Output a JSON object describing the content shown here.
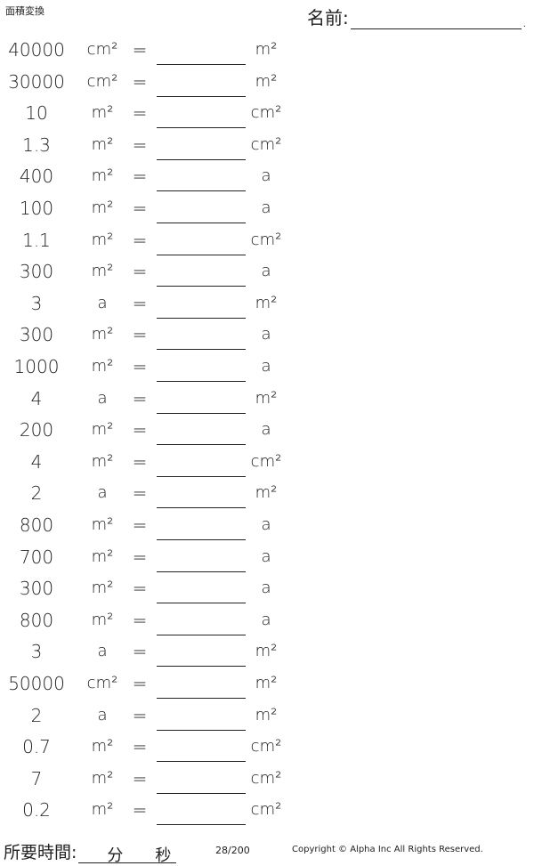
{
  "header": {
    "title": "面積変換",
    "name_label": "名前:",
    "name_dot": "."
  },
  "rows": [
    {
      "value": "40000",
      "from": "cm²",
      "eq": "=",
      "to": "m²"
    },
    {
      "value": "30000",
      "from": "cm²",
      "eq": "=",
      "to": "m²"
    },
    {
      "value": "10",
      "from": "m²",
      "eq": "=",
      "to": "cm²"
    },
    {
      "value": "1.3",
      "from": "m²",
      "eq": "=",
      "to": "cm²"
    },
    {
      "value": "400",
      "from": "m²",
      "eq": "=",
      "to": "a"
    },
    {
      "value": "100",
      "from": "m²",
      "eq": "=",
      "to": "a"
    },
    {
      "value": "1.1",
      "from": "m²",
      "eq": "=",
      "to": "cm²"
    },
    {
      "value": "300",
      "from": "m²",
      "eq": "=",
      "to": "a"
    },
    {
      "value": "3",
      "from": "a",
      "eq": "=",
      "to": "m²"
    },
    {
      "value": "300",
      "from": "m²",
      "eq": "=",
      "to": "a"
    },
    {
      "value": "1000",
      "from": "m²",
      "eq": "=",
      "to": "a"
    },
    {
      "value": "4",
      "from": "a",
      "eq": "=",
      "to": "m²"
    },
    {
      "value": "200",
      "from": "m²",
      "eq": "=",
      "to": "a"
    },
    {
      "value": "4",
      "from": "m²",
      "eq": "=",
      "to": "cm²"
    },
    {
      "value": "2",
      "from": "a",
      "eq": "=",
      "to": "m²"
    },
    {
      "value": "800",
      "from": "m²",
      "eq": "=",
      "to": "a"
    },
    {
      "value": "700",
      "from": "m²",
      "eq": "=",
      "to": "a"
    },
    {
      "value": "300",
      "from": "m²",
      "eq": "=",
      "to": "a"
    },
    {
      "value": "800",
      "from": "m²",
      "eq": "=",
      "to": "a"
    },
    {
      "value": "3",
      "from": "a",
      "eq": "=",
      "to": "m²"
    },
    {
      "value": "50000",
      "from": "cm²",
      "eq": "=",
      "to": "m²"
    },
    {
      "value": "2",
      "from": "a",
      "eq": "=",
      "to": "m²"
    },
    {
      "value": "0.7",
      "from": "m²",
      "eq": "=",
      "to": "cm²"
    },
    {
      "value": "7",
      "from": "m²",
      "eq": "=",
      "to": "cm²"
    },
    {
      "value": "0.2",
      "from": "m²",
      "eq": "=",
      "to": "cm²"
    }
  ],
  "footer": {
    "time_label": "所要時間:",
    "minutes": "分",
    "seconds": "秒",
    "page": "28/200",
    "copyright": "Copyright © Alpha Inc All Rights Reserved."
  }
}
